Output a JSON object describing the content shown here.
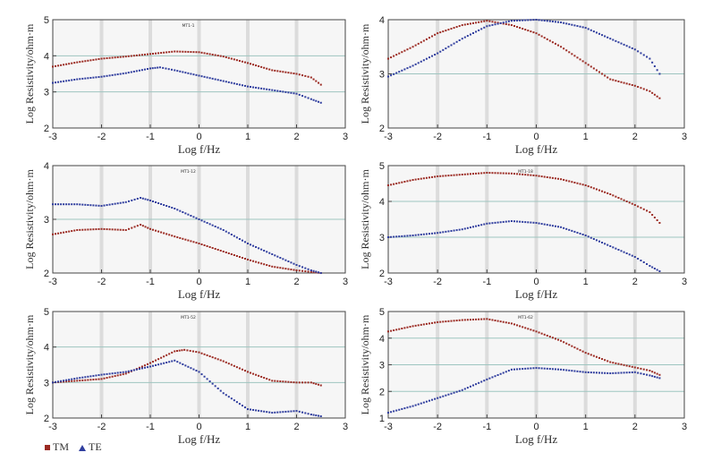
{
  "legend": {
    "tm_label": "TM",
    "te_label": "TE",
    "tm_color": "#9b2a22",
    "te_color": "#2f3d9e"
  },
  "chart_data": [
    {
      "type": "line",
      "site": "MT1-1",
      "xlabel": "Log  f/Hz",
      "ylabel": "Log Resistivity/ohm·m",
      "xlim": [
        -3,
        3
      ],
      "ylim": [
        2,
        5
      ],
      "xticks": [
        -3,
        -2,
        -1,
        0,
        1,
        2,
        3
      ],
      "yticks": [
        2,
        3,
        4,
        5
      ],
      "series": [
        {
          "name": "TM",
          "x": [
            -3,
            -2.5,
            -2,
            -1.5,
            -1,
            -0.5,
            0,
            0.5,
            1,
            1.5,
            2,
            2.3,
            2.5
          ],
          "y": [
            3.7,
            3.82,
            3.92,
            3.98,
            4.05,
            4.12,
            4.1,
            3.98,
            3.8,
            3.6,
            3.5,
            3.4,
            3.2
          ]
        },
        {
          "name": "TE",
          "x": [
            -3,
            -2.5,
            -2,
            -1.5,
            -1,
            -0.8,
            -0.5,
            0,
            0.5,
            1,
            1.5,
            2,
            2.3,
            2.5
          ],
          "y": [
            3.25,
            3.35,
            3.42,
            3.52,
            3.65,
            3.68,
            3.6,
            3.45,
            3.3,
            3.15,
            3.05,
            2.95,
            2.8,
            2.7
          ]
        }
      ]
    },
    {
      "type": "line",
      "site": "",
      "xlabel": "Log  f/Hz",
      "ylabel": "Log Resistivity/ohm·m",
      "xlim": [
        -3,
        3
      ],
      "ylim": [
        2,
        4
      ],
      "xticks": [
        -3,
        -2,
        -1,
        0,
        1,
        2,
        3
      ],
      "yticks": [
        2,
        3,
        4
      ],
      "series": [
        {
          "name": "TM",
          "x": [
            -3,
            -2.5,
            -2,
            -1.5,
            -1,
            -0.5,
            0,
            0.5,
            1,
            1.5,
            2,
            2.3,
            2.5
          ],
          "y": [
            3.28,
            3.5,
            3.75,
            3.9,
            3.98,
            3.9,
            3.75,
            3.5,
            3.2,
            2.9,
            2.78,
            2.68,
            2.55
          ]
        },
        {
          "name": "TE",
          "x": [
            -3,
            -2.5,
            -2,
            -1.5,
            -1,
            -0.5,
            0,
            0.5,
            1,
            1.5,
            2,
            2.3,
            2.5
          ],
          "y": [
            2.95,
            3.15,
            3.38,
            3.65,
            3.88,
            3.98,
            4.0,
            3.95,
            3.85,
            3.65,
            3.45,
            3.28,
            3.0
          ]
        }
      ]
    },
    {
      "type": "line",
      "site": "MT1-12",
      "xlabel": "Log  f/Hz",
      "ylabel": "Log Resistivity/ohm·m",
      "xlim": [
        -3,
        3
      ],
      "ylim": [
        2,
        4
      ],
      "xticks": [
        -3,
        -2,
        -1,
        0,
        1,
        2,
        3
      ],
      "yticks": [
        2,
        3,
        4
      ],
      "series": [
        {
          "name": "TM",
          "x": [
            -3,
            -2.5,
            -2,
            -1.5,
            -1.2,
            -1,
            -0.5,
            0,
            0.5,
            1,
            1.5,
            2,
            2.3,
            2.5
          ],
          "y": [
            2.72,
            2.8,
            2.82,
            2.8,
            2.9,
            2.82,
            2.68,
            2.55,
            2.4,
            2.25,
            2.12,
            2.05,
            2.02,
            2.0
          ]
        },
        {
          "name": "TE",
          "x": [
            -3,
            -2.5,
            -2,
            -1.5,
            -1.2,
            -1,
            -0.5,
            0,
            0.5,
            1,
            1.5,
            2,
            2.3,
            2.5
          ],
          "y": [
            3.28,
            3.28,
            3.25,
            3.32,
            3.4,
            3.35,
            3.2,
            3.0,
            2.8,
            2.55,
            2.35,
            2.15,
            2.05,
            2.0
          ]
        }
      ]
    },
    {
      "type": "line",
      "site": "MT1-18",
      "xlabel": "Log  f/Hz",
      "ylabel": "Log Resistivity/ohm·m",
      "xlim": [
        -3,
        3
      ],
      "ylim": [
        2,
        5
      ],
      "xticks": [
        -3,
        -2,
        -1,
        0,
        1,
        2,
        3
      ],
      "yticks": [
        2,
        3,
        4,
        5
      ],
      "series": [
        {
          "name": "TM",
          "x": [
            -3,
            -2.5,
            -2,
            -1.5,
            -1,
            -0.5,
            0,
            0.5,
            1,
            1.5,
            2,
            2.3,
            2.5
          ],
          "y": [
            4.45,
            4.6,
            4.7,
            4.75,
            4.8,
            4.78,
            4.72,
            4.62,
            4.45,
            4.2,
            3.9,
            3.7,
            3.4
          ]
        },
        {
          "name": "TE",
          "x": [
            -3,
            -2.5,
            -2,
            -1.5,
            -1,
            -0.5,
            0,
            0.5,
            1,
            1.5,
            2,
            2.3,
            2.5
          ],
          "y": [
            3.0,
            3.05,
            3.12,
            3.22,
            3.38,
            3.45,
            3.4,
            3.28,
            3.05,
            2.75,
            2.45,
            2.2,
            2.05
          ]
        }
      ]
    },
    {
      "type": "line",
      "site": "MT1-52",
      "xlabel": "Log  f/Hz",
      "ylabel": "Log Resistivity/ohm·m",
      "xlim": [
        -3,
        3
      ],
      "ylim": [
        2,
        5
      ],
      "xticks": [
        -3,
        -2,
        -1,
        0,
        1,
        2,
        3
      ],
      "yticks": [
        2,
        3,
        4,
        5
      ],
      "series": [
        {
          "name": "TM",
          "x": [
            -3,
            -2.5,
            -2,
            -1.5,
            -1,
            -0.5,
            -0.3,
            0,
            0.5,
            1,
            1.5,
            2,
            2.3,
            2.5
          ],
          "y": [
            3.0,
            3.05,
            3.1,
            3.25,
            3.55,
            3.88,
            3.92,
            3.85,
            3.6,
            3.3,
            3.05,
            3.0,
            3.0,
            2.92
          ]
        },
        {
          "name": "TE",
          "x": [
            -3,
            -2.5,
            -2,
            -1.5,
            -1,
            -0.5,
            0,
            0.5,
            1,
            1.5,
            2,
            2.3,
            2.5
          ],
          "y": [
            3.0,
            3.12,
            3.22,
            3.3,
            3.45,
            3.62,
            3.3,
            2.7,
            2.25,
            2.15,
            2.2,
            2.1,
            2.05
          ]
        }
      ]
    },
    {
      "type": "line",
      "site": "MT1-62",
      "xlabel": "Log  f/Hz",
      "ylabel": "Log Resistivity/ohm·m",
      "xlim": [
        -3,
        3
      ],
      "ylim": [
        1,
        5
      ],
      "xticks": [
        -3,
        -2,
        -1,
        0,
        1,
        2,
        3
      ],
      "yticks": [
        1,
        2,
        3,
        4,
        5
      ],
      "series": [
        {
          "name": "TM",
          "x": [
            -3,
            -2.5,
            -2,
            -1.5,
            -1,
            -0.5,
            0,
            0.5,
            1,
            1.5,
            2,
            2.3,
            2.5
          ],
          "y": [
            4.25,
            4.45,
            4.6,
            4.68,
            4.72,
            4.55,
            4.25,
            3.9,
            3.45,
            3.1,
            2.9,
            2.78,
            2.62
          ]
        },
        {
          "name": "TE",
          "x": [
            -3,
            -2.5,
            -2,
            -1.5,
            -1,
            -0.5,
            0,
            0.5,
            1,
            1.5,
            2,
            2.3,
            2.5
          ],
          "y": [
            1.2,
            1.45,
            1.75,
            2.05,
            2.45,
            2.82,
            2.88,
            2.82,
            2.72,
            2.68,
            2.72,
            2.6,
            2.5
          ]
        }
      ]
    }
  ]
}
